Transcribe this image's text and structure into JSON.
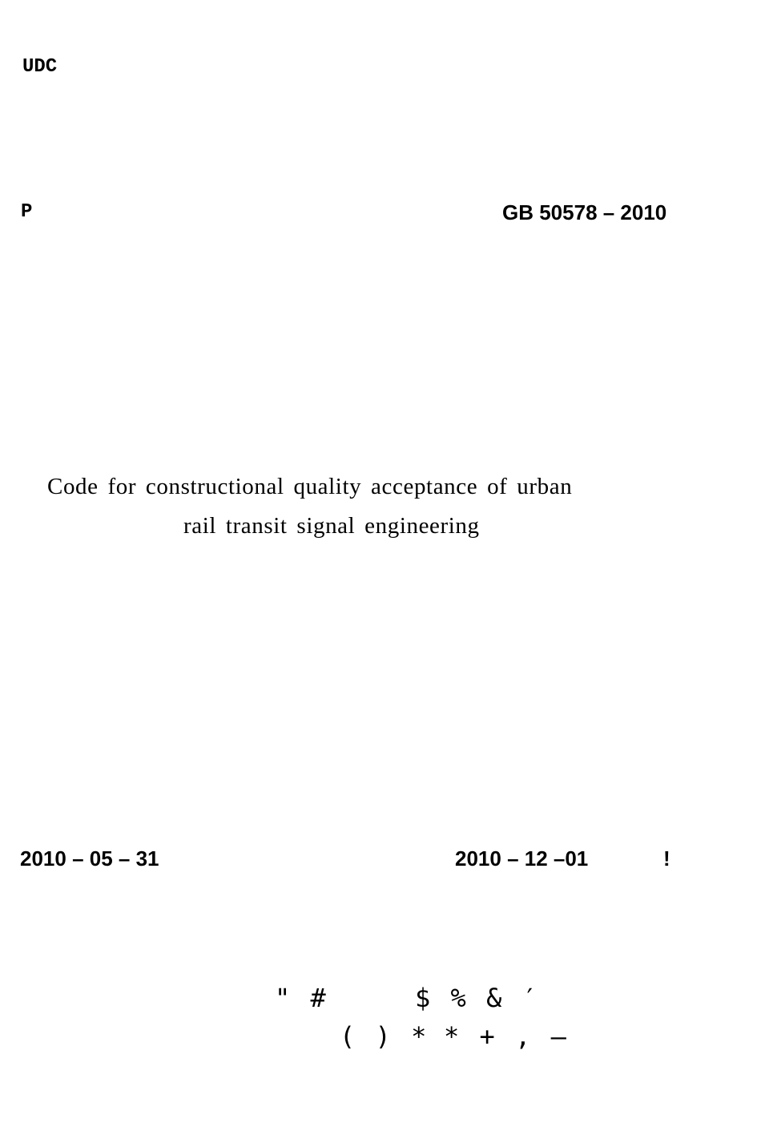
{
  "header": {
    "udc_label": "UDC",
    "category_code": "P",
    "standard_number": "GB 50578 – 2010"
  },
  "title": {
    "line1": "Code for constructional quality acceptance of urban",
    "line2": "rail transit signal engineering"
  },
  "dates": {
    "issue_date": "2010 – 05 – 31",
    "implementation_date": "2010 – 12 –01",
    "implementation_mark": "!"
  },
  "footer": {
    "line1_a": "\" #",
    "line1_b": "$ % & ′",
    "line2_a": "( ) *",
    "line2_b": "* + , —"
  }
}
